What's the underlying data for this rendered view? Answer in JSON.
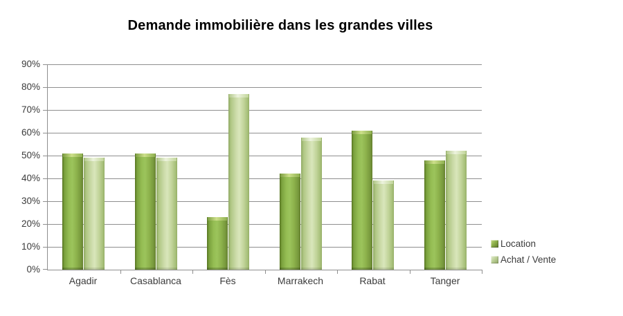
{
  "chart_data": {
    "type": "bar",
    "title": "Demande immobilière dans les grandes villes",
    "categories": [
      "Agadir",
      "Casablanca",
      "Fès",
      "Marrakech",
      "Rabat",
      "Tanger"
    ],
    "series": [
      {
        "name": "Location",
        "values": [
          51,
          51,
          23,
          42,
          61,
          48
        ],
        "color": "#85a944"
      },
      {
        "name": "Achat / Vente",
        "values": [
          49,
          49,
          77,
          58,
          39,
          52
        ],
        "color": "#c3d69c"
      }
    ],
    "xlabel": "",
    "ylabel": "",
    "ylim": [
      0,
      90
    ],
    "ytick_step": 10,
    "ytick_labels": [
      "0%",
      "10%",
      "20%",
      "30%",
      "40%",
      "50%",
      "60%",
      "70%",
      "80%",
      "90%"
    ],
    "grid": true,
    "legend_position": "right",
    "colors": {
      "gridline": "#8e8e8e",
      "axis": "#8e8e8e",
      "label": "#3b3b3b",
      "title": "#000000",
      "background": "#ffffff"
    }
  }
}
